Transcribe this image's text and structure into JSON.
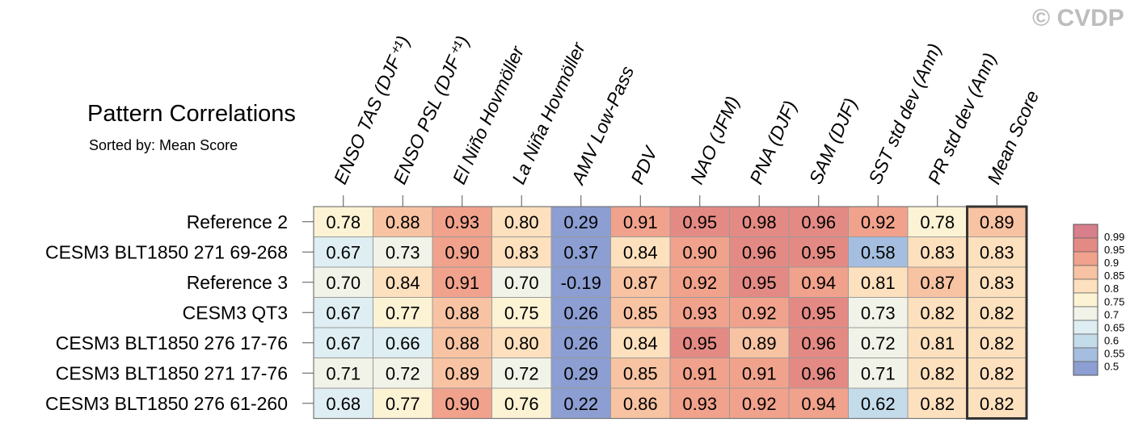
{
  "title": "Pattern Correlations",
  "subtitle": "Sorted by: Mean Score",
  "watermark": "© CVDP",
  "chart_data": {
    "type": "heatmap",
    "columns": [
      "ENSO TAS (DJF⁺¹)",
      "ENSO PSL (DJF⁺¹)",
      "El Niño Hovmöller",
      "La Niña Hovmöller",
      "AMV Low-Pass",
      "PDV",
      "NAO (JFM)",
      "PNA (DJF)",
      "SAM (DJF)",
      "SST std dev (Ann)",
      "PR std dev (Ann)",
      "Mean Score"
    ],
    "rows": [
      "Reference 2",
      "CESM3 BLT1850 271 69-268",
      "Reference 3",
      "CESM3 QT3",
      "CESM3 BLT1850 276 17-76",
      "CESM3 BLT1850 271 17-76",
      "CESM3 BLT1850 276 61-260"
    ],
    "values": [
      [
        0.78,
        0.88,
        0.93,
        0.8,
        0.29,
        0.91,
        0.95,
        0.98,
        0.96,
        0.92,
        0.78,
        0.89
      ],
      [
        0.67,
        0.73,
        0.9,
        0.83,
        0.37,
        0.84,
        0.9,
        0.96,
        0.95,
        0.58,
        0.83,
        0.83
      ],
      [
        0.7,
        0.84,
        0.91,
        0.7,
        -0.19,
        0.87,
        0.92,
        0.95,
        0.94,
        0.81,
        0.87,
        0.83
      ],
      [
        0.67,
        0.77,
        0.88,
        0.75,
        0.26,
        0.85,
        0.93,
        0.92,
        0.95,
        0.73,
        0.82,
        0.82
      ],
      [
        0.67,
        0.66,
        0.88,
        0.8,
        0.26,
        0.84,
        0.95,
        0.89,
        0.96,
        0.72,
        0.81,
        0.82
      ],
      [
        0.71,
        0.72,
        0.89,
        0.72,
        0.29,
        0.85,
        0.91,
        0.91,
        0.96,
        0.71,
        0.82,
        0.82
      ],
      [
        0.68,
        0.77,
        0.9,
        0.76,
        0.22,
        0.86,
        0.93,
        0.92,
        0.94,
        0.62,
        0.82,
        0.82
      ]
    ],
    "highlight_column": "Mean Score",
    "colorbar": {
      "levels": [
        "0.99",
        "0.95",
        "0.9",
        "0.85",
        "0.8",
        "0.75",
        "0.7",
        "0.65",
        "0.6",
        "0.55",
        "0.5"
      ],
      "colors": [
        "#d77f8a",
        "#e48a84",
        "#f1a28c",
        "#f8c3a2",
        "#fde0bd",
        "#fcf3d5",
        "#f1f3e8",
        "#deeef2",
        "#c4dbea",
        "#a5bedf",
        "#8c9ed2"
      ]
    }
  }
}
